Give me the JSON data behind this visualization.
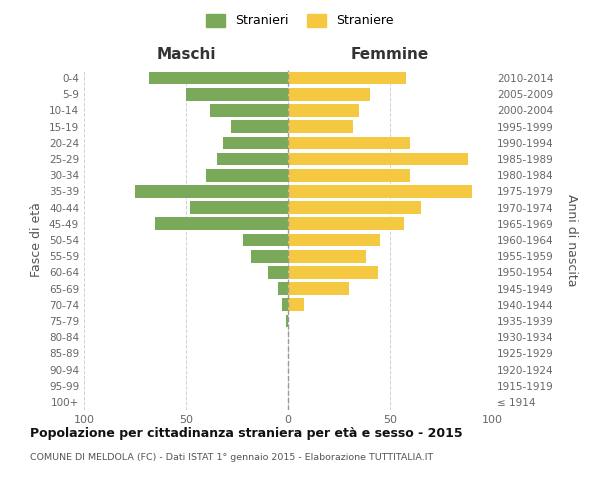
{
  "age_groups": [
    "100+",
    "95-99",
    "90-94",
    "85-89",
    "80-84",
    "75-79",
    "70-74",
    "65-69",
    "60-64",
    "55-59",
    "50-54",
    "45-49",
    "40-44",
    "35-39",
    "30-34",
    "25-29",
    "20-24",
    "15-19",
    "10-14",
    "5-9",
    "0-4"
  ],
  "birth_years": [
    "≤ 1914",
    "1915-1919",
    "1920-1924",
    "1925-1929",
    "1930-1934",
    "1935-1939",
    "1940-1944",
    "1945-1949",
    "1950-1954",
    "1955-1959",
    "1960-1964",
    "1965-1969",
    "1970-1974",
    "1975-1979",
    "1980-1984",
    "1985-1989",
    "1990-1994",
    "1995-1999",
    "2000-2004",
    "2005-2009",
    "2010-2014"
  ],
  "maschi": [
    0,
    0,
    0,
    0,
    0,
    1,
    3,
    5,
    10,
    18,
    22,
    65,
    48,
    75,
    40,
    35,
    32,
    28,
    38,
    50,
    68
  ],
  "femmine": [
    0,
    0,
    0,
    0,
    0,
    0,
    8,
    30,
    44,
    38,
    45,
    57,
    65,
    90,
    60,
    88,
    60,
    32,
    35,
    40,
    58
  ],
  "color_maschi": "#7aaa59",
  "color_femmine": "#f5c842",
  "title": "Popolazione per cittadinanza straniera per età e sesso - 2015",
  "subtitle": "COMUNE DI MELDOLA (FC) - Dati ISTAT 1° gennaio 2015 - Elaborazione TUTTITALIA.IT",
  "label_maschi_col": "Maschi",
  "label_femmine_col": "Femmine",
  "ylabel_left": "Fasce di età",
  "ylabel_right": "Anni di nascita",
  "legend_maschi": "Stranieri",
  "legend_femmine": "Straniere",
  "xlim": 100,
  "bg_color": "#ffffff",
  "grid_color": "#d0d0d0"
}
